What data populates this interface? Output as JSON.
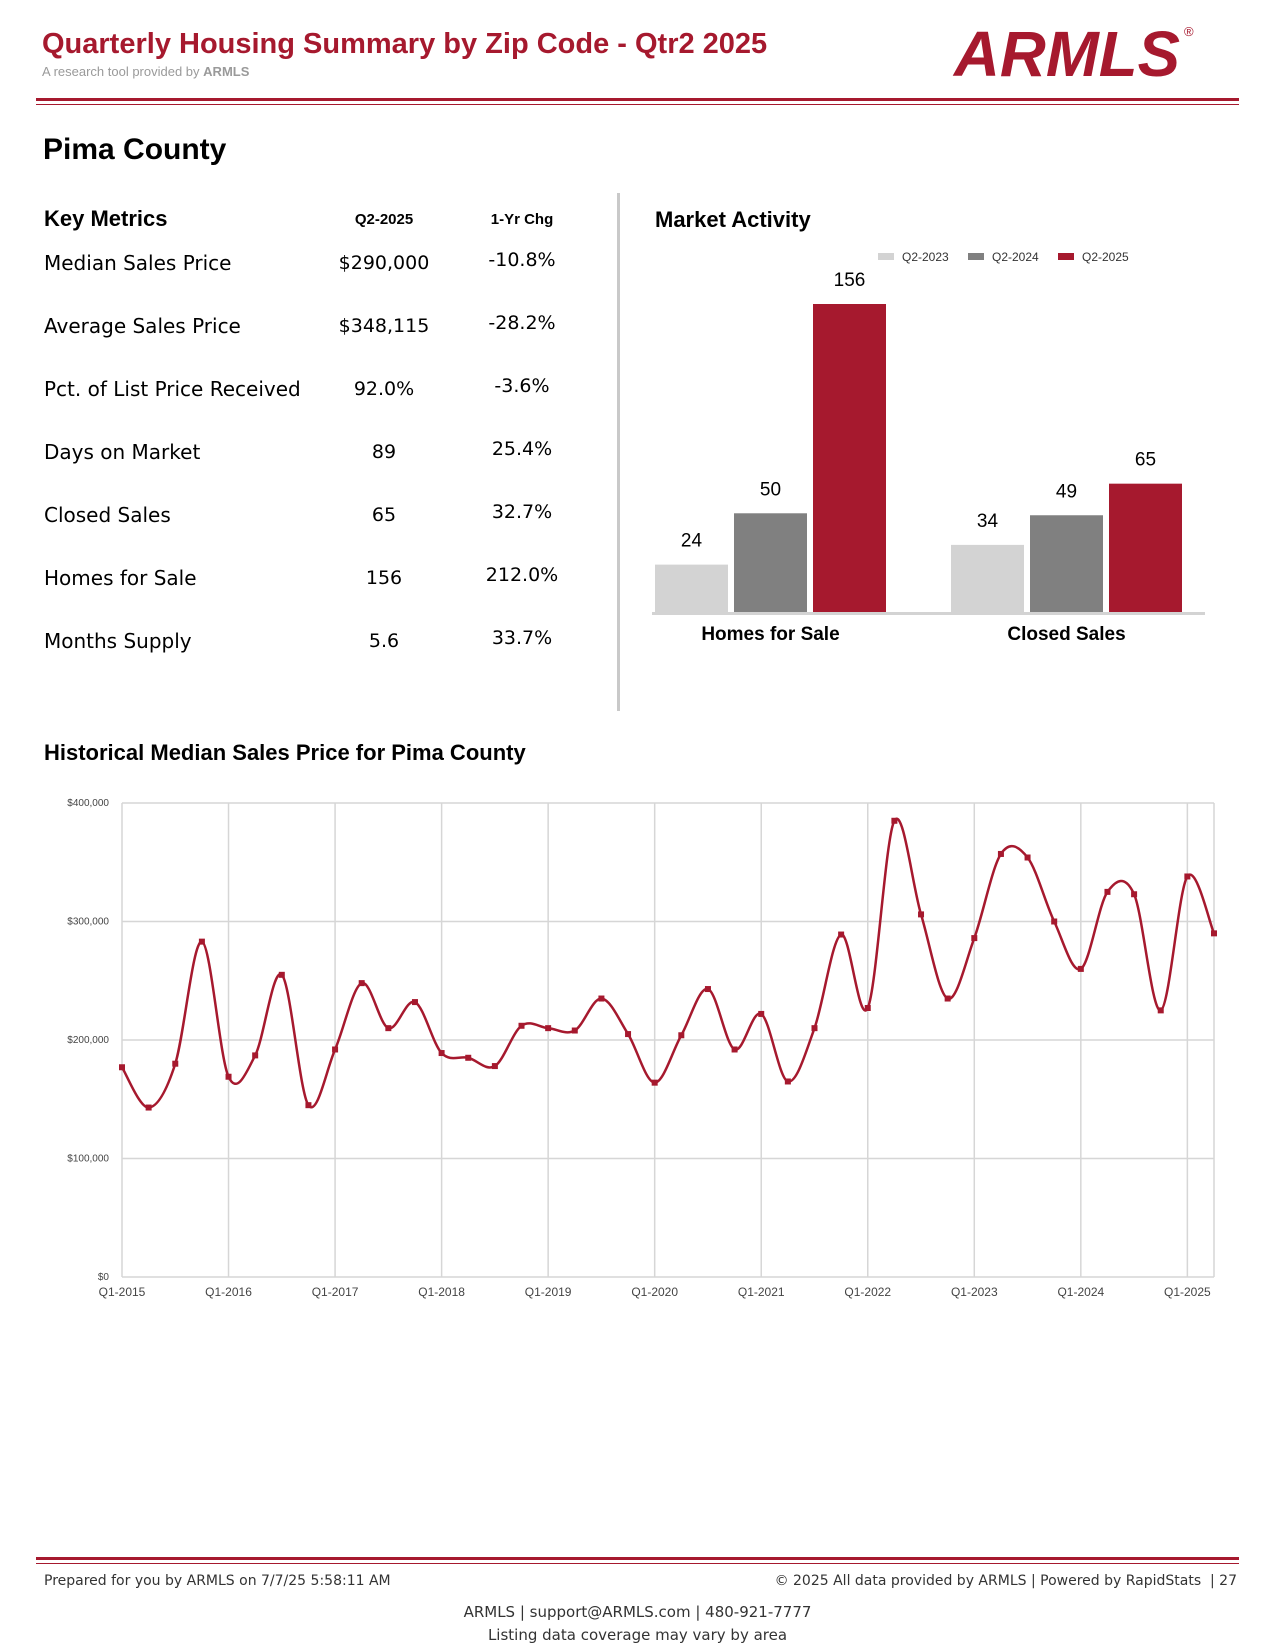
{
  "header": {
    "title": "Quarterly Housing Summary by Zip Code - Qtr2 2025",
    "subtitle_prefix": "A research tool provided by",
    "subtitle_brand": "ARMLS",
    "logo_text": "ARMLS",
    "logo_mark": "®"
  },
  "county": "Pima County",
  "key_metrics": {
    "title": "Key Metrics",
    "col_value": "Q2-2025",
    "col_change": "1-Yr Chg",
    "rows": [
      {
        "label": "Median Sales Price",
        "value": "$290,000",
        "change": "-10.8%"
      },
      {
        "label": "Average Sales Price",
        "value": "$348,115",
        "change": "-28.2%"
      },
      {
        "label": "Pct. of List Price Received",
        "value": "92.0%",
        "change": "-3.6%"
      },
      {
        "label": "Days on Market",
        "value": "89",
        "change": "25.4%"
      },
      {
        "label": "Closed Sales",
        "value": "65",
        "change": "32.7%"
      },
      {
        "label": "Homes for Sale",
        "value": "156",
        "change": "212.0%"
      },
      {
        "label": "Months Supply",
        "value": "5.6",
        "change": "33.7%"
      }
    ]
  },
  "market_activity_title": "Market Activity",
  "historical_title": "Historical Median Sales Price for Pima County",
  "colors": {
    "brand_red": "#a6192e",
    "light_gray": "#d3d3d3",
    "dark_gray": "#808080"
  },
  "chart_data": [
    {
      "type": "bar",
      "title": "Market Activity",
      "categories": [
        "Homes for Sale",
        "Closed Sales"
      ],
      "series": [
        {
          "name": "Q2-2023",
          "color": "#d3d3d3",
          "values": [
            24,
            34
          ]
        },
        {
          "name": "Q2-2024",
          "color": "#808080",
          "values": [
            50,
            49
          ]
        },
        {
          "name": "Q2-2025",
          "color": "#a6192e",
          "values": [
            156,
            65
          ]
        }
      ],
      "ylim": [
        0,
        156
      ],
      "legend": "top-right",
      "grid": false
    },
    {
      "type": "line",
      "title": "Historical Median Sales Price for Pima County",
      "x_ticks": [
        "Q1-2015",
        "Q1-2016",
        "Q1-2017",
        "Q1-2018",
        "Q1-2019",
        "Q1-2020",
        "Q1-2021",
        "Q1-2022",
        "Q1-2023",
        "Q1-2024",
        "Q1-2025"
      ],
      "y_ticks": [
        "$0",
        "$100,000",
        "$200,000",
        "$300,000",
        "$400,000"
      ],
      "ylim": [
        0,
        400000
      ],
      "grid": true,
      "series": [
        {
          "color": "#a6192e",
          "x": [
            "Q1-2015",
            "Q2-2015",
            "Q3-2015",
            "Q4-2015",
            "Q1-2016",
            "Q2-2016",
            "Q3-2016",
            "Q4-2016",
            "Q1-2017",
            "Q2-2017",
            "Q3-2017",
            "Q4-2017",
            "Q1-2018",
            "Q2-2018",
            "Q3-2018",
            "Q4-2018",
            "Q1-2019",
            "Q2-2019",
            "Q3-2019",
            "Q4-2019",
            "Q1-2020",
            "Q2-2020",
            "Q3-2020",
            "Q4-2020",
            "Q1-2021",
            "Q2-2021",
            "Q3-2021",
            "Q4-2021",
            "Q1-2022",
            "Q2-2022",
            "Q3-2022",
            "Q4-2022",
            "Q1-2023",
            "Q2-2023",
            "Q3-2023",
            "Q4-2023",
            "Q1-2024",
            "Q2-2024",
            "Q3-2024",
            "Q4-2024",
            "Q1-2025",
            "Q2-2025"
          ],
          "values": [
            177000,
            143000,
            180000,
            283000,
            169000,
            187000,
            255000,
            145000,
            192000,
            248000,
            210000,
            232000,
            189000,
            185000,
            178000,
            212000,
            210000,
            208000,
            235000,
            205000,
            164000,
            204000,
            243000,
            192000,
            222000,
            165000,
            210000,
            289000,
            227000,
            385000,
            306000,
            235000,
            286000,
            357000,
            354000,
            300000,
            260000,
            325000,
            323000,
            225000,
            338000,
            290000
          ]
        }
      ]
    }
  ]
}
